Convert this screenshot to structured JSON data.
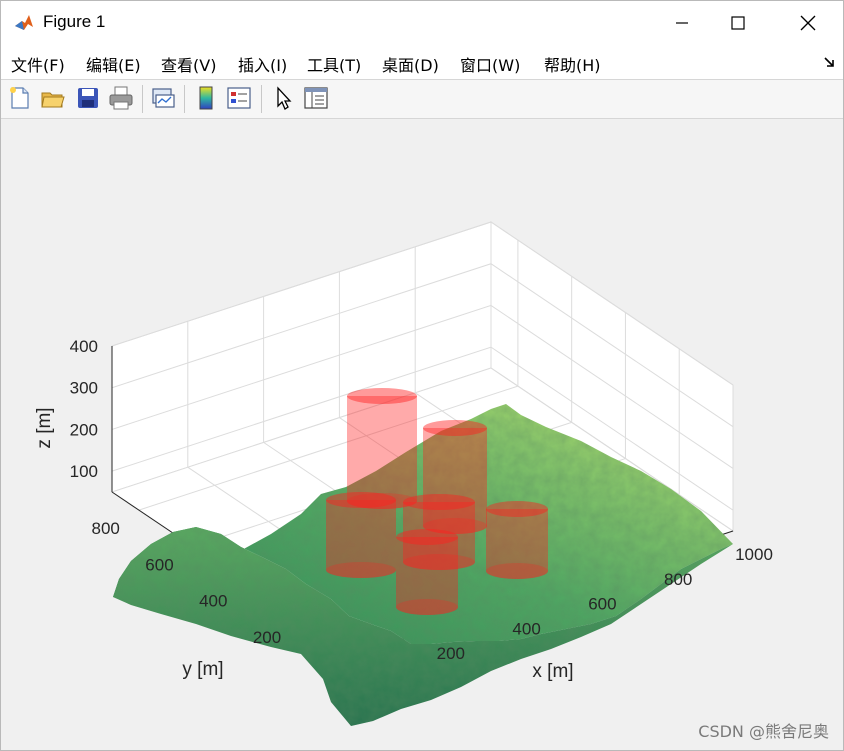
{
  "window": {
    "title": "Figure 1"
  },
  "menu": {
    "items": [
      "文件(F)",
      "编辑(E)",
      "查看(V)",
      "插入(I)",
      "工具(T)",
      "桌面(D)",
      "窗口(W)",
      "帮助(H)"
    ]
  },
  "toolbar": {
    "buttons": [
      "new-figure-icon",
      "open-file-icon",
      "save-icon",
      "print-icon",
      "link-plot-icon",
      "insert-colorbar-icon",
      "insert-legend-icon",
      "edit-plot-icon",
      "property-inspector-icon"
    ]
  },
  "chart_data": {
    "type": "surface3d",
    "title": "",
    "xlabel": "x [m]",
    "ylabel": "y [m]",
    "zlabel": "z [m]",
    "xticks": [
      "200",
      "400",
      "600",
      "800",
      "1000"
    ],
    "yticks": [
      "200",
      "400",
      "600",
      "800"
    ],
    "zticks": [
      "100",
      "200",
      "300",
      "400"
    ],
    "xlim": [
      0,
      1000
    ],
    "ylim": [
      0,
      900
    ],
    "zlim": [
      50,
      400
    ],
    "surface": {
      "description_colormap": "summer",
      "color_low": "#2e8b57",
      "color_high": "#c8e86a"
    },
    "cylinders": {
      "color": "#ff2020",
      "count": 7
    },
    "grid": true
  },
  "watermark": "CSDN @熊舍尼奥"
}
